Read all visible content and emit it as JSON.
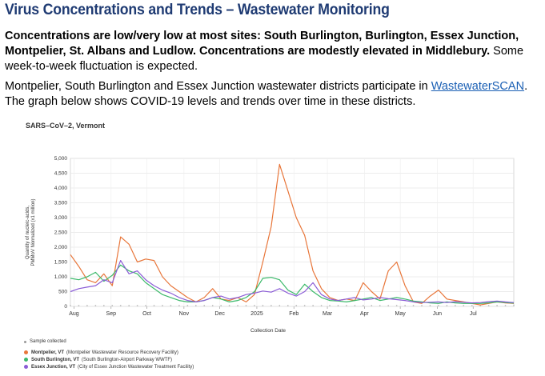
{
  "page": {
    "heading": "Virus Concentrations and Trends – Wastewater Monitoring",
    "summary_bold": "Concentrations are low/very low at most sites: South Burlington, Burlington, Essex Junction, Montpelier, St. Albans and Ludlow. Concentrations are modestly elevated in Middlebury.",
    "summary_rest": " Some week-to-week fluctuation is expected.",
    "para2_before": "Montpelier, South Burlington and Essex Junction wastewater districts participate in ",
    "para2_link": "WastewaterSCAN",
    "para2_after": ". The graph below shows COVID-19 levels and trends over time in these districts."
  },
  "chart_data": {
    "type": "line",
    "title": "SARS–CoV–2, Vermont",
    "xlabel": "Collection Date",
    "ylabel_lines": [
      "Quantity of nucleic-acids,",
      "PMMoV Normalized (x1 million)"
    ],
    "ylim": [
      0,
      5000
    ],
    "yticks": [
      0,
      500,
      1000,
      1500,
      2000,
      2500,
      3000,
      3500,
      4000,
      4500,
      5000
    ],
    "ytick_labels": [
      "0",
      "500",
      "1,000",
      "1,500",
      "2,000",
      "2,500",
      "3,000",
      "3,500",
      "4,000",
      "4,500",
      "5,000"
    ],
    "xtick_labels": [
      "Aug",
      "Sep",
      "Oct",
      "Nov",
      "Dec",
      "2025",
      "Feb",
      "Mar",
      "Apr",
      "May",
      "Jun",
      "Jul"
    ],
    "grid": true,
    "x": [
      "2024-07-29",
      "2024-08-05",
      "2024-08-12",
      "2024-08-19",
      "2024-08-26",
      "2024-09-02",
      "2024-09-09",
      "2024-09-16",
      "2024-09-23",
      "2024-09-30",
      "2024-10-07",
      "2024-10-14",
      "2024-10-21",
      "2024-10-28",
      "2024-11-04",
      "2024-11-11",
      "2024-11-18",
      "2024-11-25",
      "2024-12-02",
      "2024-12-09",
      "2024-12-16",
      "2024-12-23",
      "2024-12-30",
      "2025-01-06",
      "2025-01-13",
      "2025-01-20",
      "2025-01-27",
      "2025-02-03",
      "2025-02-10",
      "2025-02-17",
      "2025-02-24",
      "2025-03-03",
      "2025-03-10",
      "2025-03-17",
      "2025-03-24",
      "2025-03-31",
      "2025-04-07",
      "2025-04-14",
      "2025-04-21",
      "2025-04-28",
      "2025-05-05",
      "2025-05-12",
      "2025-05-19",
      "2025-05-26",
      "2025-06-02",
      "2025-06-09",
      "2025-06-16",
      "2025-06-23",
      "2025-06-30",
      "2025-07-07",
      "2025-07-14",
      "2025-07-21",
      "2025-07-28",
      "2025-08-04"
    ],
    "series": [
      {
        "name": "Montpelier, VT",
        "facility": "(Montpelier Wastewater Resource Recovery Facility)",
        "color": "#e8763a",
        "values": [
          1750,
          1350,
          900,
          800,
          1100,
          700,
          2350,
          2100,
          1500,
          1600,
          1550,
          1000,
          700,
          500,
          300,
          150,
          300,
          600,
          250,
          200,
          300,
          150,
          400,
          1500,
          2700,
          4800,
          3900,
          3000,
          2400,
          1200,
          600,
          300,
          200,
          250,
          200,
          800,
          500,
          250,
          1200,
          1500,
          700,
          150,
          100,
          350,
          550,
          250,
          200,
          150,
          100,
          50,
          100,
          150,
          120,
          100
        ]
      },
      {
        "name": "South Burlington, VT",
        "facility": "(South Burlington-Airport Parkway WWTF)",
        "color": "#3bb96a",
        "values": [
          950,
          900,
          1000,
          1150,
          850,
          1050,
          1400,
          1200,
          1100,
          800,
          600,
          400,
          300,
          200,
          150,
          150,
          200,
          300,
          250,
          150,
          200,
          300,
          500,
          950,
          980,
          900,
          550,
          400,
          750,
          500,
          300,
          200,
          180,
          150,
          200,
          250,
          300,
          200,
          250,
          300,
          250,
          180,
          150,
          120,
          100,
          150,
          120,
          100,
          100,
          100,
          120,
          150,
          130,
          110
        ]
      },
      {
        "name": "Essex Junction, VT",
        "facility": "(City of Essex Junction Wastewater Treatment Facility)",
        "color": "#8b5cd6",
        "values": [
          500,
          600,
          650,
          700,
          900,
          800,
          1550,
          1100,
          1200,
          900,
          700,
          550,
          450,
          300,
          200,
          150,
          200,
          300,
          350,
          250,
          300,
          400,
          450,
          520,
          480,
          600,
          450,
          350,
          500,
          800,
          400,
          250,
          200,
          250,
          300,
          220,
          250,
          300,
          260,
          230,
          200,
          150,
          130,
          140,
          150,
          130,
          160,
          140,
          120,
          130,
          160,
          180,
          150,
          130
        ]
      }
    ]
  },
  "legend": {
    "sample_collected": "Sample collected"
  }
}
